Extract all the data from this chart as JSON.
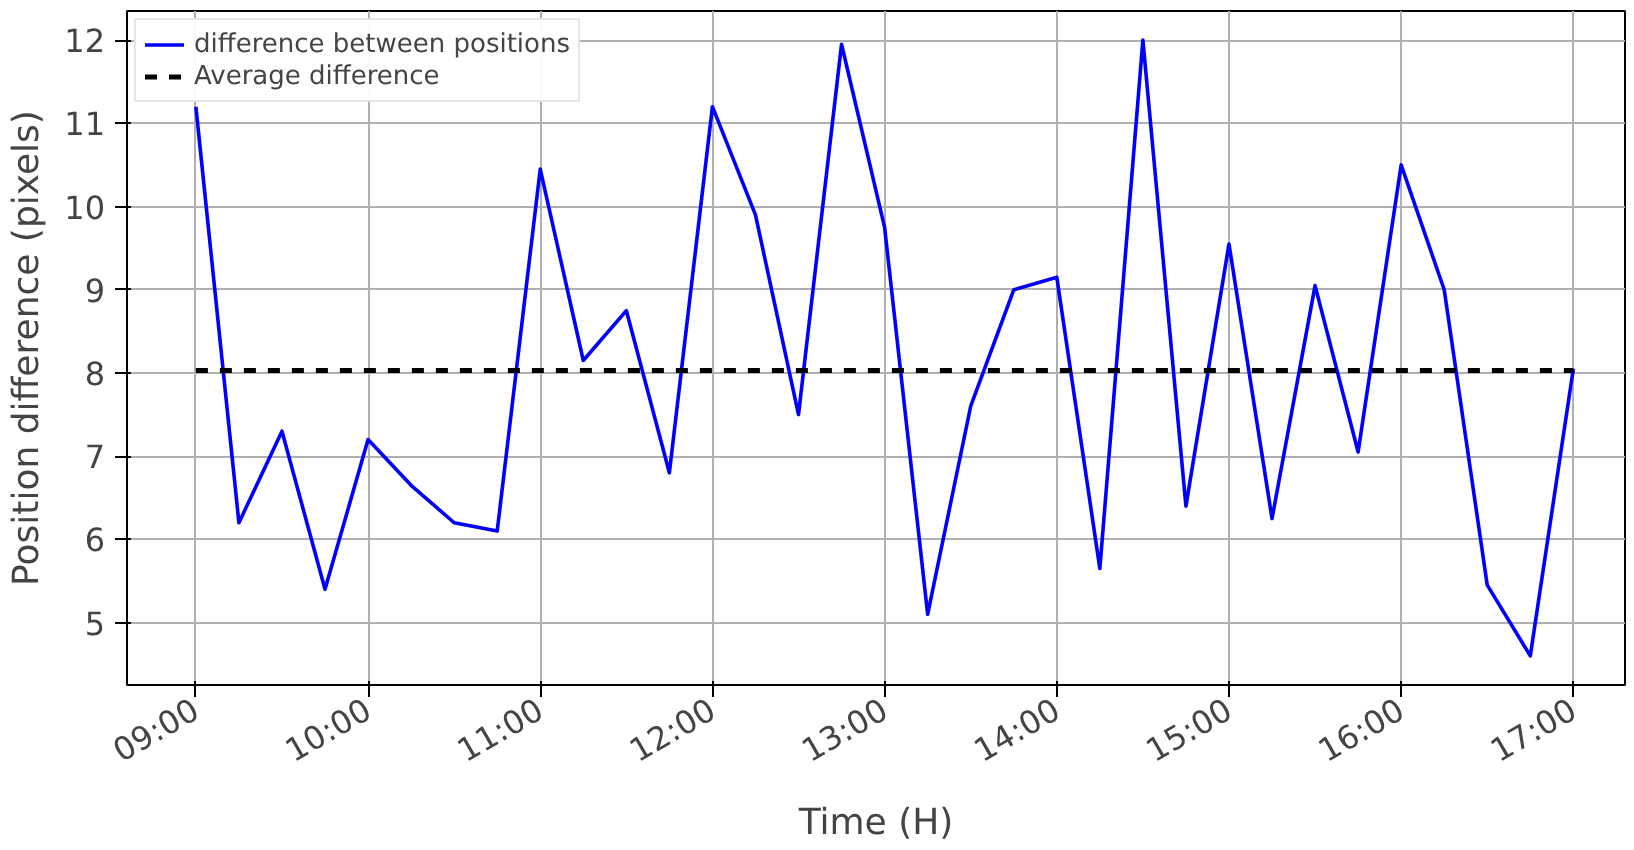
{
  "chart_data": {
    "type": "line",
    "xlabel": "Time (H)",
    "ylabel": "Position difference (pixels)",
    "x": [
      9.0,
      9.25,
      9.5,
      9.75,
      10.0,
      10.25,
      10.5,
      10.75,
      11.0,
      11.25,
      11.5,
      11.75,
      12.0,
      12.25,
      12.5,
      12.75,
      13.0,
      13.25,
      13.5,
      13.75,
      14.0,
      14.25,
      14.5,
      14.75,
      15.0,
      15.25,
      15.5,
      15.75,
      16.0,
      16.25,
      16.5,
      16.75,
      17.0
    ],
    "series": [
      {
        "name": "difference between positions",
        "color": "#0000ff",
        "values": [
          11.2,
          6.2,
          7.3,
          5.4,
          7.2,
          6.65,
          6.2,
          6.1,
          10.45,
          8.15,
          8.75,
          6.8,
          11.2,
          9.9,
          7.5,
          11.95,
          9.75,
          5.1,
          7.6,
          9.0,
          9.15,
          5.65,
          12.0,
          6.4,
          9.55,
          6.25,
          9.05,
          7.05,
          10.5,
          9.0,
          5.45,
          4.6,
          8.05
        ]
      }
    ],
    "ref_lines": [
      {
        "axis": "y",
        "value": 8.03,
        "label": "Average difference",
        "color": "#000000",
        "line_style": "dashed"
      }
    ],
    "xlim": [
      8.6,
      17.3
    ],
    "ylim": [
      4.25,
      12.35
    ],
    "xticks": [
      {
        "value": 9,
        "label": "09:00"
      },
      {
        "value": 10,
        "label": "10:00"
      },
      {
        "value": 11,
        "label": "11:00"
      },
      {
        "value": 12,
        "label": "12:00"
      },
      {
        "value": 13,
        "label": "13:00"
      },
      {
        "value": 14,
        "label": "14:00"
      },
      {
        "value": 15,
        "label": "15:00"
      },
      {
        "value": 16,
        "label": "16:00"
      },
      {
        "value": 17,
        "label": "17:00"
      }
    ],
    "yticks": [
      5,
      6,
      7,
      8,
      9,
      10,
      11,
      12
    ],
    "grid": true,
    "legend": "top left",
    "line_style": "solid"
  }
}
